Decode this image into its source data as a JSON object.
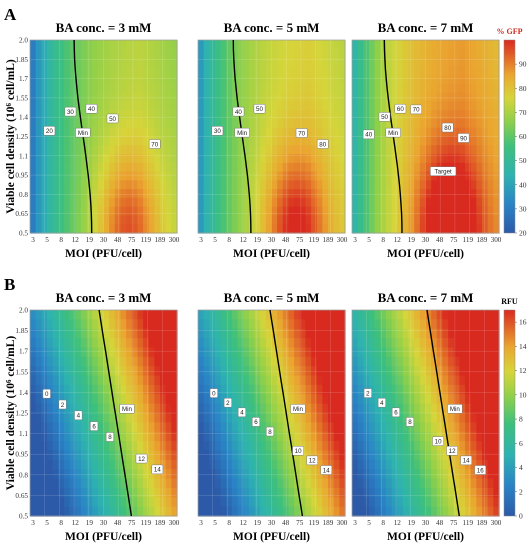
{
  "figure": {
    "panel_labels": [
      "A",
      "B"
    ],
    "y_axis_label": "Viable cell density (10⁶ cell/mL)",
    "x_axis_label": "MOI (PFU/cell)"
  },
  "chart_data": [
    {
      "type": "contour",
      "panel": "A",
      "title": "BA conc. = 3 mM",
      "xlabel": "MOI (PFU/cell)",
      "ylabel": "Viable cell density (10⁶ cell/mL)",
      "x_tick_labels": [
        "3",
        "5",
        "8",
        "12",
        "19",
        "30",
        "48",
        "75",
        "119",
        "189",
        "300"
      ],
      "y_tick_labels": [
        "0.5",
        "0.65",
        "0.8",
        "0.95",
        "1.1",
        "1.25",
        "1.4",
        "1.55",
        "1.7",
        "1.85",
        "2.0"
      ],
      "ylim": [
        0.5,
        2.0
      ],
      "colorbar": {
        "title": "% GFP",
        "range": [
          20,
          100
        ],
        "ticks": [
          "20",
          "30",
          "40",
          "50",
          "60",
          "70",
          "80",
          "90"
        ]
      },
      "contour_labels": [
        "20",
        "30",
        "40",
        "50",
        "Min",
        "70"
      ]
    },
    {
      "type": "contour",
      "panel": "A",
      "title": "BA conc. = 5 mM",
      "xlabel": "MOI (PFU/cell)",
      "x_tick_labels": [
        "3",
        "5",
        "8",
        "12",
        "19",
        "30",
        "48",
        "75",
        "119",
        "189",
        "300"
      ],
      "ylim": [
        0.5,
        2.0
      ],
      "contour_labels": [
        "30",
        "40",
        "50",
        "Min",
        "70",
        "80"
      ]
    },
    {
      "type": "contour",
      "panel": "A",
      "title": "BA conc. = 7 mM",
      "xlabel": "MOI (PFU/cell)",
      "x_tick_labels": [
        "3",
        "5",
        "8",
        "12",
        "19",
        "30",
        "48",
        "75",
        "119",
        "189",
        "300"
      ],
      "ylim": [
        0.5,
        2.0
      ],
      "contour_labels": [
        "40",
        "50",
        "60",
        "70",
        "Min",
        "80",
        "90",
        "Target"
      ]
    },
    {
      "type": "contour",
      "panel": "B",
      "title": "BA conc. = 3 mM",
      "xlabel": "MOI (PFU/cell)",
      "ylabel": "Viable cell density (10⁶ cell/mL)",
      "x_tick_labels": [
        "3",
        "5",
        "8",
        "12",
        "19",
        "30",
        "48",
        "75",
        "119",
        "189",
        "300"
      ],
      "y_tick_labels": [
        "0.5",
        "0.65",
        "0.8",
        "0.95",
        "1.1",
        "1.25",
        "1.4",
        "1.55",
        "1.7",
        "1.85",
        "2.0"
      ],
      "ylim": [
        0.5,
        2.0
      ],
      "colorbar": {
        "title": "RFU",
        "range": [
          0,
          17
        ],
        "ticks": [
          "0",
          "2",
          "4",
          "6",
          "8",
          "10",
          "12",
          "14",
          "16"
        ]
      },
      "contour_labels": [
        "0",
        "2",
        "4",
        "6",
        "8",
        "Min",
        "12",
        "14"
      ]
    },
    {
      "type": "contour",
      "panel": "B",
      "title": "BA conc. = 5 mM",
      "xlabel": "MOI (PFU/cell)",
      "x_tick_labels": [
        "3",
        "5",
        "8",
        "12",
        "19",
        "30",
        "48",
        "75",
        "119",
        "189",
        "300"
      ],
      "ylim": [
        0.5,
        2.0
      ],
      "contour_labels": [
        "0",
        "2",
        "4",
        "6",
        "8",
        "Min",
        "10",
        "12",
        "14"
      ]
    },
    {
      "type": "contour",
      "panel": "B",
      "title": "BA conc. = 7 mM",
      "xlabel": "MOI (PFU/cell)",
      "x_tick_labels": [
        "3",
        "5",
        "8",
        "12",
        "19",
        "30",
        "48",
        "75",
        "119",
        "189",
        "300"
      ],
      "ylim": [
        0.5,
        2.0
      ],
      "contour_labels": [
        "2",
        "4",
        "6",
        "8",
        "Min",
        "10",
        "12",
        "14",
        "16"
      ]
    }
  ]
}
